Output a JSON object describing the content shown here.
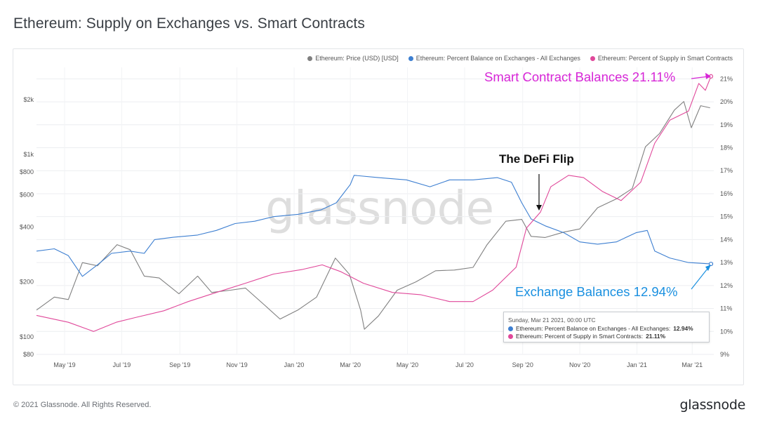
{
  "page": {
    "title": "Ethereum: Supply on Exchanges vs. Smart Contracts",
    "copyright": "© 2021 Glassnode. All Rights Reserved.",
    "brand": "glassnode",
    "watermark": "glassnode"
  },
  "colors": {
    "price": "#808080",
    "exchanges": "#3d7fd1",
    "smart_contracts": "#e0489a",
    "annotation_smart_contracts": "#d726d7",
    "annotation_exchanges": "#1a90e0"
  },
  "legend": [
    {
      "label": "Ethereum: Price (USD) [USD]",
      "color": "#808080"
    },
    {
      "label": "Ethereum: Percent Balance on Exchanges - All Exchanges",
      "color": "#3d7fd1"
    },
    {
      "label": "Ethereum: Percent of Supply in Smart Contracts",
      "color": "#e0489a"
    }
  ],
  "tooltip": {
    "date": "Sunday, Mar 21 2021, 00:00 UTC",
    "rows": [
      {
        "label": "Ethereum: Percent Balance on Exchanges - All Exchanges:",
        "value": "12.94%",
        "color": "#3d7fd1"
      },
      {
        "label": "Ethereum: Percent of Supply in Smart Contracts:",
        "value": "21.11%",
        "color": "#e0489a"
      }
    ]
  },
  "annotations": {
    "smart_contracts": "Smart Contract Balances 21.11%",
    "exchanges": "Exchange Balances 12.94%",
    "defi_flip": "The DeFi Flip"
  },
  "chart_data": {
    "type": "line",
    "title": "Ethereum: Supply on Exchanges vs. Smart Contracts",
    "x_tick_labels": [
      "May '19",
      "Jul '19",
      "Sep '19",
      "Nov '19",
      "Jan '20",
      "Mar '20",
      "May '20",
      "Jul '20",
      "Sep '20",
      "Nov '20",
      "Jan '21",
      "Mar '21"
    ],
    "x_range": [
      "2019-04-01",
      "2021-03-24"
    ],
    "y_left": {
      "scale": "log",
      "range": [
        80,
        3000
      ],
      "tick_labels": [
        "$80",
        "$100",
        "$200",
        "$400",
        "$600",
        "$800",
        "$1k",
        "$2k"
      ],
      "tick_values": [
        80,
        100,
        200,
        400,
        600,
        800,
        1000,
        2000
      ]
    },
    "y_right": {
      "scale": "linear",
      "range": [
        9,
        21.5
      ],
      "tick_labels": [
        "9%",
        "10%",
        "11%",
        "12%",
        "13%",
        "14%",
        "15%",
        "16%",
        "17%",
        "18%",
        "19%",
        "20%",
        "21%"
      ],
      "tick_values": [
        9,
        10,
        11,
        12,
        13,
        14,
        15,
        16,
        17,
        18,
        19,
        20,
        21
      ]
    },
    "grid": true,
    "legend_position": "top-right",
    "series": [
      {
        "name": "Ethereum: Price (USD) [USD]",
        "axis": "left",
        "points": [
          [
            "2019-04-01",
            140
          ],
          [
            "2019-04-20",
            165
          ],
          [
            "2019-05-05",
            160
          ],
          [
            "2019-05-20",
            255
          ],
          [
            "2019-06-05",
            245
          ],
          [
            "2019-06-26",
            320
          ],
          [
            "2019-07-10",
            300
          ],
          [
            "2019-07-25",
            215
          ],
          [
            "2019-08-10",
            210
          ],
          [
            "2019-08-31",
            172
          ],
          [
            "2019-09-20",
            215
          ],
          [
            "2019-10-05",
            175
          ],
          [
            "2019-10-25",
            180
          ],
          [
            "2019-11-10",
            185
          ],
          [
            "2019-11-30",
            150
          ],
          [
            "2019-12-17",
            125
          ],
          [
            "2020-01-05",
            140
          ],
          [
            "2020-01-25",
            165
          ],
          [
            "2020-02-14",
            270
          ],
          [
            "2020-02-29",
            220
          ],
          [
            "2020-03-12",
            140
          ],
          [
            "2020-03-16",
            110
          ],
          [
            "2020-03-31",
            130
          ],
          [
            "2020-04-20",
            180
          ],
          [
            "2020-05-10",
            200
          ],
          [
            "2020-05-31",
            230
          ],
          [
            "2020-06-20",
            232
          ],
          [
            "2020-07-10",
            240
          ],
          [
            "2020-07-25",
            320
          ],
          [
            "2020-08-14",
            430
          ],
          [
            "2020-08-31",
            440
          ],
          [
            "2020-09-10",
            355
          ],
          [
            "2020-09-25",
            350
          ],
          [
            "2020-10-15",
            375
          ],
          [
            "2020-11-01",
            390
          ],
          [
            "2020-11-20",
            510
          ],
          [
            "2020-12-10",
            570
          ],
          [
            "2020-12-27",
            650
          ],
          [
            "2021-01-10",
            1100
          ],
          [
            "2021-01-25",
            1300
          ],
          [
            "2021-02-10",
            1750
          ],
          [
            "2021-02-20",
            1950
          ],
          [
            "2021-02-28",
            1400
          ],
          [
            "2021-03-10",
            1850
          ],
          [
            "2021-03-20",
            1800
          ]
        ]
      },
      {
        "name": "Ethereum: Percent Balance on Exchanges - All Exchanges",
        "axis": "right",
        "points": [
          [
            "2019-04-01",
            13.5
          ],
          [
            "2019-04-20",
            13.6
          ],
          [
            "2019-05-05",
            13.3
          ],
          [
            "2019-05-20",
            12.4
          ],
          [
            "2019-06-05",
            12.9
          ],
          [
            "2019-06-20",
            13.4
          ],
          [
            "2019-07-10",
            13.5
          ],
          [
            "2019-07-25",
            13.4
          ],
          [
            "2019-08-05",
            14.0
          ],
          [
            "2019-08-25",
            14.1
          ],
          [
            "2019-09-20",
            14.2
          ],
          [
            "2019-10-10",
            14.4
          ],
          [
            "2019-10-30",
            14.7
          ],
          [
            "2019-11-20",
            14.8
          ],
          [
            "2019-12-10",
            15.0
          ],
          [
            "2020-01-05",
            15.1
          ],
          [
            "2020-01-30",
            15.3
          ],
          [
            "2020-02-15",
            15.6
          ],
          [
            "2020-03-01",
            16.4
          ],
          [
            "2020-03-05",
            16.8
          ],
          [
            "2020-03-31",
            16.7
          ],
          [
            "2020-04-30",
            16.6
          ],
          [
            "2020-05-25",
            16.3
          ],
          [
            "2020-06-15",
            16.6
          ],
          [
            "2020-07-10",
            16.6
          ],
          [
            "2020-08-05",
            16.7
          ],
          [
            "2020-08-20",
            16.5
          ],
          [
            "2020-08-31",
            15.6
          ],
          [
            "2020-09-10",
            14.9
          ],
          [
            "2020-09-25",
            14.6
          ],
          [
            "2020-10-15",
            14.3
          ],
          [
            "2020-11-01",
            13.9
          ],
          [
            "2020-11-20",
            13.8
          ],
          [
            "2020-12-10",
            13.9
          ],
          [
            "2020-12-31",
            14.3
          ],
          [
            "2021-01-12",
            14.4
          ],
          [
            "2021-01-20",
            13.5
          ],
          [
            "2021-02-05",
            13.2
          ],
          [
            "2021-02-25",
            13.0
          ],
          [
            "2021-03-21",
            12.94
          ]
        ]
      },
      {
        "name": "Ethereum: Percent of Supply in Smart Contracts",
        "axis": "right",
        "points": [
          [
            "2019-04-01",
            10.7
          ],
          [
            "2019-05-05",
            10.4
          ],
          [
            "2019-06-01",
            10.0
          ],
          [
            "2019-06-25",
            10.4
          ],
          [
            "2019-07-15",
            10.6
          ],
          [
            "2019-08-15",
            10.9
          ],
          [
            "2019-09-10",
            11.3
          ],
          [
            "2019-10-10",
            11.7
          ],
          [
            "2019-11-10",
            12.1
          ],
          [
            "2019-12-10",
            12.5
          ],
          [
            "2020-01-10",
            12.7
          ],
          [
            "2020-01-31",
            12.9
          ],
          [
            "2020-02-20",
            12.6
          ],
          [
            "2020-03-15",
            12.1
          ],
          [
            "2020-04-15",
            11.7
          ],
          [
            "2020-05-15",
            11.6
          ],
          [
            "2020-06-15",
            11.3
          ],
          [
            "2020-07-10",
            11.3
          ],
          [
            "2020-07-31",
            11.8
          ],
          [
            "2020-08-25",
            12.8
          ],
          [
            "2020-09-05",
            14.5
          ],
          [
            "2020-09-20",
            15.2
          ],
          [
            "2020-10-01",
            16.3
          ],
          [
            "2020-10-20",
            16.8
          ],
          [
            "2020-11-05",
            16.7
          ],
          [
            "2020-11-25",
            16.1
          ],
          [
            "2020-12-15",
            15.7
          ],
          [
            "2021-01-05",
            16.5
          ],
          [
            "2021-01-20",
            18.2
          ],
          [
            "2021-02-05",
            19.2
          ],
          [
            "2021-02-25",
            19.6
          ],
          [
            "2021-03-08",
            20.8
          ],
          [
            "2021-03-15",
            20.5
          ],
          [
            "2021-03-21",
            21.11
          ]
        ]
      }
    ]
  }
}
